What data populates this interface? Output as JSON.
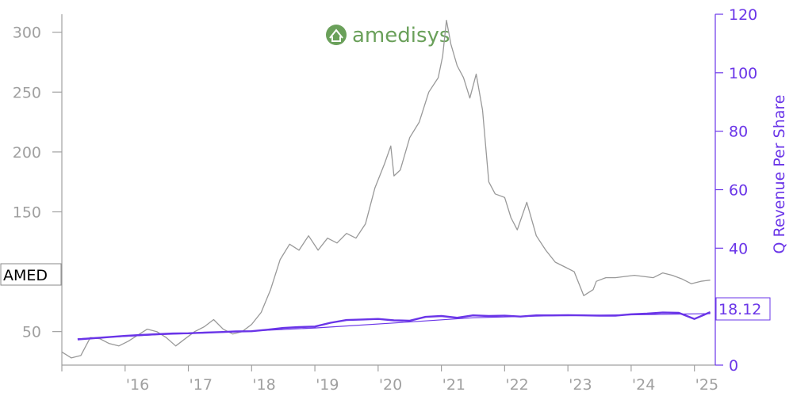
{
  "logo": {
    "name": "amedisys",
    "icon": "house-leaf-icon",
    "color": "#6aa05a"
  },
  "chart_data": {
    "type": "line",
    "ticker_label": "AMED",
    "last_value_label": "18.12",
    "x_tick_labels": [
      "'16",
      "'17",
      "'18",
      "'19",
      "'20",
      "'21",
      "'22",
      "'23",
      "'24",
      "'25"
    ],
    "x_ticks": [
      2016,
      2017,
      2018,
      2019,
      2020,
      2021,
      2022,
      2023,
      2024,
      2025
    ],
    "xlim": [
      2015.0,
      2025.33
    ],
    "left_axis": {
      "label": "",
      "ylim": [
        22,
        315
      ],
      "ticks": [
        50,
        100,
        150,
        200,
        250,
        300
      ],
      "color": "#a0a0a0"
    },
    "right_axis": {
      "label": "Q Revenue Per Share",
      "ylim": [
        0,
        120
      ],
      "ticks": [
        0,
        20,
        40,
        60,
        80,
        100,
        120
      ],
      "color": "#6a35e8"
    },
    "series": [
      {
        "axis": "left",
        "color": "#999999",
        "x": [
          2015.0,
          2015.15,
          2015.3,
          2015.45,
          2015.6,
          2015.75,
          2015.9,
          2016.05,
          2016.2,
          2016.35,
          2016.5,
          2016.65,
          2016.8,
          2016.95,
          2017.1,
          2017.25,
          2017.4,
          2017.55,
          2017.7,
          2017.85,
          2018.0,
          2018.15,
          2018.3,
          2018.45,
          2018.6,
          2018.75,
          2018.9,
          2019.05,
          2019.2,
          2019.35,
          2019.5,
          2019.65,
          2019.8,
          2019.95,
          2020.1,
          2020.2,
          2020.25,
          2020.35,
          2020.5,
          2020.65,
          2020.8,
          2020.95,
          2021.02,
          2021.08,
          2021.15,
          2021.25,
          2021.35,
          2021.45,
          2021.55,
          2021.65,
          2021.75,
          2021.85,
          2022.0,
          2022.1,
          2022.2,
          2022.35,
          2022.5,
          2022.65,
          2022.8,
          2022.95,
          2023.1,
          2023.25,
          2023.4,
          2023.45,
          2023.6,
          2023.75,
          2023.9,
          2024.05,
          2024.2,
          2024.35,
          2024.5,
          2024.65,
          2024.8,
          2024.95,
          2025.1,
          2025.25
        ],
        "values": [
          33,
          28,
          30,
          45,
          44,
          40,
          38,
          42,
          47,
          52,
          50,
          45,
          38,
          44,
          50,
          54,
          60,
          52,
          48,
          50,
          56,
          66,
          85,
          110,
          123,
          118,
          130,
          118,
          128,
          124,
          132,
          128,
          140,
          170,
          190,
          205,
          180,
          185,
          212,
          225,
          250,
          262,
          280,
          310,
          290,
          272,
          262,
          245,
          265,
          235,
          175,
          165,
          162,
          145,
          135,
          158,
          130,
          118,
          108,
          104,
          100,
          80,
          85,
          92,
          95,
          95,
          96,
          97,
          96,
          95,
          99,
          97,
          94,
          90,
          92,
          93
        ]
      },
      {
        "axis": "right",
        "color": "#6a35e8",
        "x": [
          2015.25,
          2015.5,
          2015.75,
          2016.0,
          2016.25,
          2016.5,
          2016.75,
          2017.0,
          2017.25,
          2017.5,
          2017.75,
          2018.0,
          2018.25,
          2018.5,
          2018.75,
          2019.0,
          2019.25,
          2019.5,
          2019.75,
          2020.0,
          2020.25,
          2020.5,
          2020.75,
          2021.0,
          2021.25,
          2021.5,
          2021.75,
          2022.0,
          2022.25,
          2022.5,
          2022.75,
          2023.0,
          2023.25,
          2023.5,
          2023.75,
          2024.0,
          2024.25,
          2024.5,
          2024.75,
          2025.0,
          2025.25
        ],
        "values": [
          8.8,
          9.2,
          9.6,
          10.0,
          10.3,
          10.6,
          10.8,
          10.9,
          11.1,
          11.3,
          11.5,
          11.6,
          12.1,
          12.7,
          13.0,
          13.2,
          14.5,
          15.4,
          15.6,
          15.8,
          15.3,
          15.2,
          16.5,
          16.8,
          16.2,
          17.0,
          16.8,
          16.9,
          16.6,
          17.0,
          17.0,
          17.1,
          17.0,
          16.9,
          16.9,
          17.4,
          17.6,
          18.0,
          17.9,
          15.8,
          18.12
        ]
      },
      {
        "axis": "right",
        "color": "#6a35e8",
        "x": [
          2015.25,
          2016.5,
          2017.75,
          2019.0,
          2020.25,
          2021.5,
          2022.75,
          2024.0,
          2025.25
        ],
        "values": [
          9.0,
          10.4,
          11.4,
          12.7,
          14.4,
          16.2,
          16.9,
          17.2,
          17.6
        ]
      }
    ]
  }
}
